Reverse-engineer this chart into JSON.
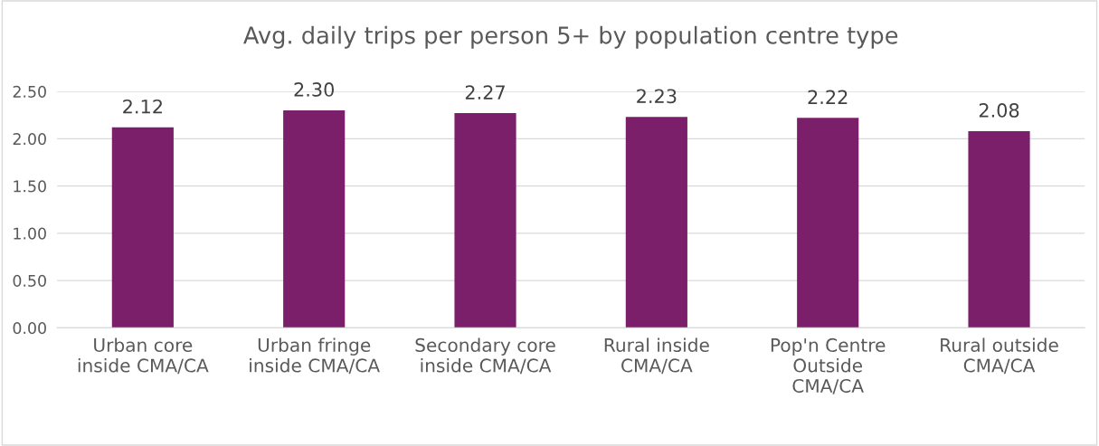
{
  "chart_data": {
    "type": "bar",
    "title": "Avg. daily trips per person 5+ by population centre type",
    "categories": [
      "Urban core\ninside CMA/CA",
      "Urban fringe\ninside CMA/CA",
      "Secondary core\ninside CMA/CA",
      "Rural inside\nCMA/CA",
      "Pop'n Centre\nOutside\nCMA/CA",
      "Rural outside\nCMA/CA"
    ],
    "values": [
      2.12,
      2.3,
      2.27,
      2.23,
      2.22,
      2.08
    ],
    "value_labels": [
      "2.12",
      "2.30",
      "2.27",
      "2.23",
      "2.22",
      "2.08"
    ],
    "color": "#7b1f6b",
    "ylim": [
      0,
      2.5
    ],
    "yticks": [
      {
        "value": 0,
        "label": "0.00"
      },
      {
        "value": 0.5,
        "label": "0.50"
      },
      {
        "value": 1,
        "label": "1.00"
      },
      {
        "value": 1.5,
        "label": "1.50"
      },
      {
        "value": 2,
        "label": "2.00"
      },
      {
        "value": 2.5,
        "label": "2.50"
      }
    ],
    "grid": "y"
  }
}
